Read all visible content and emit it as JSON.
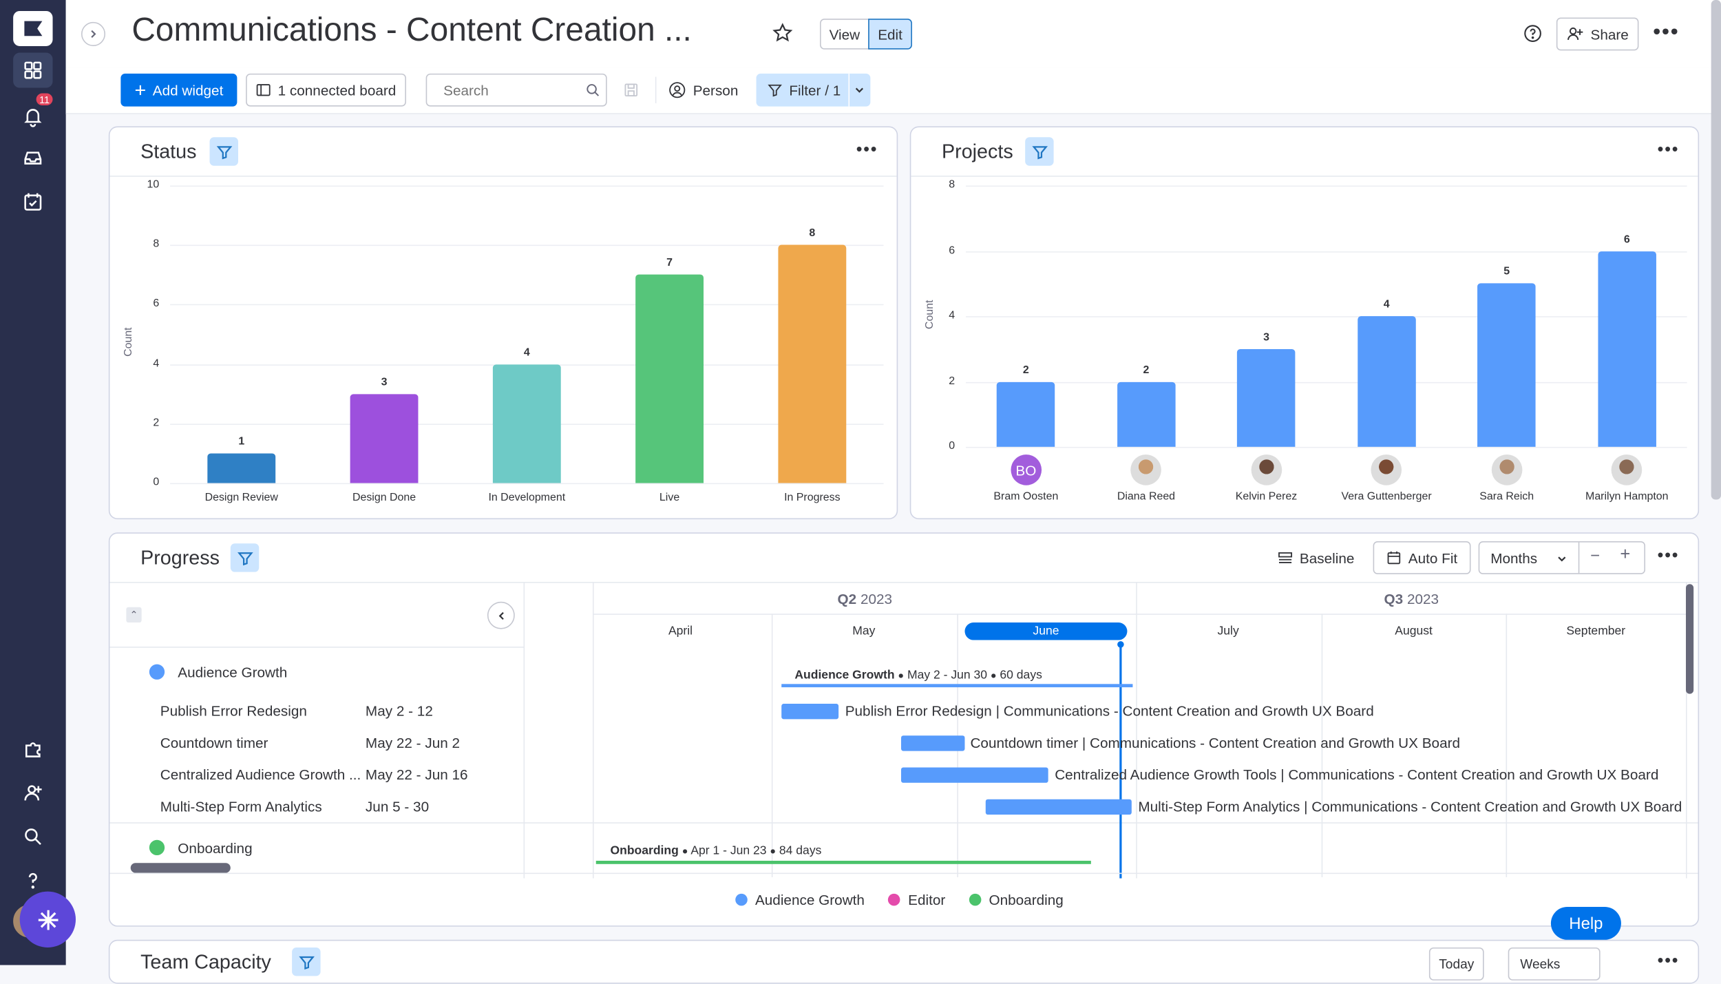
{
  "header": {
    "title": "Communications - Content Creation ...",
    "view_label": "View",
    "edit_label": "Edit",
    "share_label": "Share"
  },
  "rail": {
    "notifications_count": "11"
  },
  "toolbar": {
    "add_widget_label": "Add widget",
    "connected_board_label": "1 connected board",
    "search_placeholder": "Search",
    "person_label": "Person",
    "filter_label": "Filter / 1"
  },
  "status_widget": {
    "title": "Status",
    "ylabel": "Count"
  },
  "projects_widget": {
    "title": "Projects",
    "ylabel": "Count",
    "avatar_initials": "BO"
  },
  "chart_data": [
    {
      "type": "bar",
      "title": "Status",
      "ylabel": "Count",
      "xlabel": "",
      "ylim": [
        0,
        10
      ],
      "yticks": [
        "0",
        "2",
        "4",
        "6",
        "8",
        "10"
      ],
      "categories": [
        "Design Review",
        "Design Done",
        "In Development",
        "Live",
        "In Progress"
      ],
      "values": [
        1,
        3,
        4,
        7,
        8
      ],
      "colors": [
        "#2f80c5",
        "#9d50dd",
        "#6ecac6",
        "#56c57a",
        "#efa84c"
      ],
      "value_labels": [
        "1",
        "3",
        "4",
        "7",
        "8"
      ],
      "grid": true
    },
    {
      "type": "bar",
      "title": "Projects",
      "ylabel": "Count",
      "xlabel": "",
      "ylim": [
        0,
        8
      ],
      "yticks": [
        "0",
        "2",
        "4",
        "6",
        "8"
      ],
      "categories": [
        "Bram Oosten",
        "Diana Reed",
        "Kelvin Perez",
        "Vera Guttenberger",
        "Sara Reich",
        "Marilyn Hampton"
      ],
      "values": [
        2,
        2,
        3,
        4,
        5,
        6
      ],
      "colors": [
        "#579bfc",
        "#579bfc",
        "#579bfc",
        "#579bfc",
        "#579bfc",
        "#579bfc"
      ],
      "value_labels": [
        "2",
        "2",
        "3",
        "4",
        "5",
        "6"
      ],
      "grid": true
    }
  ],
  "progress_widget": {
    "title": "Progress",
    "baseline_label": "Baseline",
    "autofit_label": "Auto Fit",
    "scale_label": "Months",
    "quarters": [
      {
        "label_bold": "Q2",
        "label_rest": " 2023"
      },
      {
        "label_bold": "Q3",
        "label_rest": " 2023"
      }
    ],
    "months": [
      "April",
      "May",
      "June",
      "July",
      "August",
      "September"
    ],
    "groups": [
      {
        "name": "Audience Growth",
        "color": "#579bfc"
      },
      {
        "name": "Onboarding",
        "color": "#4bc36b"
      }
    ],
    "items": [
      {
        "name": "Publish Error Redesign",
        "dates": "May 2 - 12",
        "bar_label": "Publish Error Redesign | Communications - Content Creation and Growth UX Board"
      },
      {
        "name": "Countdown timer",
        "dates": "May 22 - Jun 2",
        "bar_label": "Countdown timer | Communications - Content Creation and Growth UX Board"
      },
      {
        "name": "Centralized Audience Growth ...",
        "dates": "May 22 - Jun 16",
        "bar_label": "Centralized Audience Growth Tools | Communications - Content Creation and Growth UX Board"
      },
      {
        "name": "Multi-Step Form Analytics",
        "dates": "Jun 5 - 30",
        "bar_label": "Multi-Step Form Analytics | Communications - Content Creation and Growth UX Board"
      }
    ],
    "group_summaries": [
      {
        "name": "Audience Growth",
        "range": "May 2 - Jun 30",
        "days": "60 days"
      },
      {
        "name": "Onboarding",
        "range": "Apr 1 - Jun 23",
        "days": "84 days"
      }
    ],
    "legend": [
      {
        "label": "Audience Growth",
        "color": "#579bfc"
      },
      {
        "label": "Editor",
        "color": "#e44bab"
      },
      {
        "label": "Onboarding",
        "color": "#4bc36b"
      }
    ]
  },
  "team_capacity": {
    "title": "Team Capacity",
    "today_label": "Today",
    "weeks_label": "Weeks"
  },
  "help_label": "Help"
}
